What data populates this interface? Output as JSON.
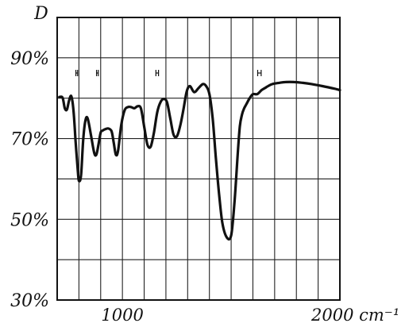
{
  "chart_data": {
    "type": "line",
    "title": "",
    "ylabel": "D",
    "xlabel": "",
    "xlim": [
      700,
      2000
    ],
    "ylim": [
      30,
      100
    ],
    "grid": true,
    "x_tick_labels": [
      {
        "x": 1000,
        "text": "1000"
      },
      {
        "x": 2000,
        "text": "2000 cm⁻¹"
      }
    ],
    "y_tick_labels": [
      {
        "y": 90,
        "text": "90%"
      },
      {
        "y": 70,
        "text": "70%"
      },
      {
        "y": 50,
        "text": "50%"
      },
      {
        "y": 30,
        "text": "30%"
      }
    ],
    "resolution_markers": [
      {
        "x": 790,
        "halfwidth": 4
      },
      {
        "x": 885,
        "halfwidth": 4
      },
      {
        "x": 1160,
        "halfwidth": 6
      },
      {
        "x": 1630,
        "halfwidth": 8
      }
    ],
    "series": [
      {
        "x": [
          710,
          725,
          735,
          745,
          755,
          765,
          775,
          785,
          795,
          800,
          810,
          820,
          830,
          840,
          855,
          870,
          880,
          890,
          900,
          910,
          920,
          935,
          950,
          960,
          970,
          980,
          995,
          1010,
          1025,
          1040,
          1055,
          1070,
          1085,
          1100,
          1115,
          1130,
          1145,
          1160,
          1175,
          1190,
          1205,
          1220,
          1235,
          1250,
          1265,
          1280,
          1295,
          1310,
          1330,
          1350,
          1370,
          1385,
          1400,
          1415,
          1430,
          1445,
          1460,
          1480,
          1500,
          1515,
          1530,
          1540,
          1550,
          1560,
          1570,
          1585,
          1600,
          1620,
          1640,
          1655,
          1670,
          1690,
          1720,
          1750,
          1790,
          1830,
          1870,
          1920,
          1980,
          2000
        ],
        "y": [
          80.3,
          80.1,
          77.5,
          77.2,
          79.5,
          80.5,
          77.0,
          69.0,
          62.0,
          59.5,
          61.0,
          70.0,
          74.5,
          75.0,
          71.0,
          66.5,
          66.0,
          68.5,
          71.5,
          72.0,
          72.3,
          72.5,
          71.8,
          69.0,
          66.0,
          67.0,
          73.5,
          77.0,
          77.8,
          77.8,
          77.5,
          78.0,
          77.5,
          73.0,
          68.5,
          68.0,
          71.5,
          76.5,
          79.0,
          79.8,
          79.0,
          75.0,
          71.0,
          70.5,
          73.0,
          77.0,
          81.5,
          83.0,
          81.5,
          82.5,
          83.5,
          83.0,
          81.0,
          75.0,
          65.0,
          56.0,
          49.0,
          45.5,
          46.0,
          54.0,
          66.0,
          73.0,
          76.0,
          77.5,
          78.5,
          80.0,
          81.0,
          81.0,
          82.0,
          82.5,
          83.0,
          83.5,
          83.8,
          84.0,
          84.0,
          83.8,
          83.5,
          83.0,
          82.3,
          82.0
        ]
      }
    ]
  }
}
